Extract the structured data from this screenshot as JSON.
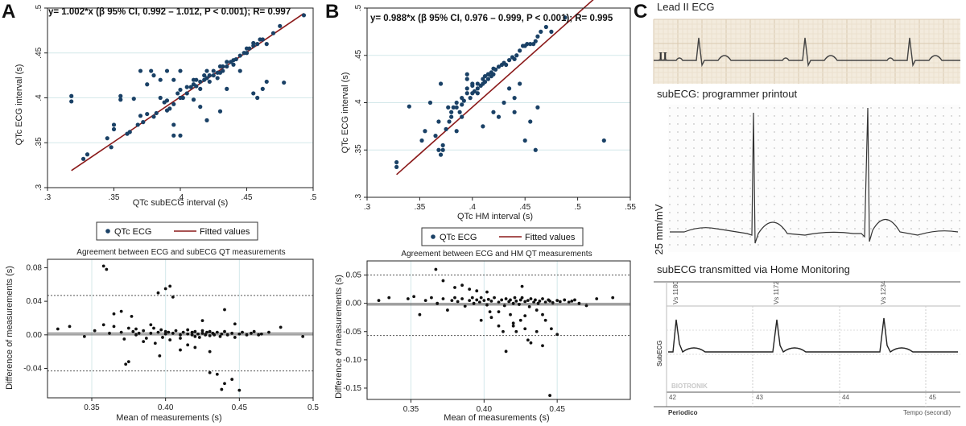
{
  "panels": {
    "A": {
      "letter": "A",
      "equation": "y= 1.002*x (β 95% CI, 0.992 – 1.012, P < 0.001); R= 0.997",
      "xlabel": "QTc subECG interval (s)",
      "ylabel": "QTc ECG interval (s)",
      "legend": {
        "points": "QTc ECG",
        "line": "Fitted values"
      },
      "ba_title": "Agreement between ECG and subECG QT measurements",
      "ba_xlabel": "Mean of measurements (s)",
      "ba_ylabel": "Difference of measurements (s)"
    },
    "B": {
      "letter": "B",
      "equation": "y= 0.988*x (β 95% CI, 0.976 – 0.999, P < 0.001); R= 0.995",
      "xlabel": "QTc HM interval (s)",
      "ylabel": "QTc ECG interval (s)",
      "legend": {
        "points": "QTc ECG",
        "line": "Fitted values"
      },
      "ba_title": "Agreement between ECG and HM QT measurements",
      "ba_xlabel": "Mean of measurements (s)",
      "ba_ylabel": "Difference of measurements (s)"
    },
    "C": {
      "letter": "C",
      "lead_title": "Lead II ECG",
      "lead_label": "II",
      "printout_title": "subECG: programmer printout",
      "scale_label": "25 mm/mV",
      "hm_title": "subECG transmitted via Home Monitoring",
      "beats": [
        "Vs 1180",
        "Vs 1172",
        "Vs 1234"
      ],
      "hm_side_label": "SubECG",
      "brand": "BIOTRONIK",
      "time_ticks": [
        "42",
        "43",
        "44",
        "45"
      ],
      "periodico": "Periodico",
      "tempo": "Tempo (secondi)"
    }
  },
  "chart_data": [
    {
      "id": "A-scatter",
      "type": "scatter",
      "title": "y= 1.002*x (β 95% CI, 0.992 – 1.012, P < 0.001); R= 0.997",
      "xlabel": "QTc subECG interval (s)",
      "ylabel": "QTc ECG interval (s)",
      "xlim": [
        0.3,
        0.5
      ],
      "ylim": [
        0.3,
        0.5
      ],
      "xticks": [
        ".3",
        ".35",
        ".4",
        ".45",
        ".5"
      ],
      "yticks": [
        ".3",
        ".35",
        ".4",
        ".45",
        ".5"
      ],
      "series": [
        {
          "name": "QTc ECG",
          "x": [
            0.318,
            0.318,
            0.327,
            0.33,
            0.348,
            0.35,
            0.35,
            0.355,
            0.36,
            0.362,
            0.365,
            0.368,
            0.37,
            0.372,
            0.375,
            0.378,
            0.38,
            0.38,
            0.382,
            0.385,
            0.385,
            0.388,
            0.39,
            0.39,
            0.392,
            0.395,
            0.395,
            0.398,
            0.4,
            0.4,
            0.402,
            0.405,
            0.405,
            0.408,
            0.41,
            0.41,
            0.412,
            0.412,
            0.415,
            0.415,
            0.418,
            0.418,
            0.42,
            0.42,
            0.422,
            0.422,
            0.425,
            0.425,
            0.428,
            0.428,
            0.43,
            0.43,
            0.432,
            0.432,
            0.435,
            0.435,
            0.438,
            0.44,
            0.44,
            0.442,
            0.445,
            0.448,
            0.45,
            0.45,
            0.452,
            0.455,
            0.455,
            0.458,
            0.46,
            0.462,
            0.465,
            0.47,
            0.475,
            0.478,
            0.493,
            0.345,
            0.355,
            0.37,
            0.375,
            0.39,
            0.395,
            0.4,
            0.415,
            0.42,
            0.43,
            0.455,
            0.458,
            0.462,
            0.465,
            0.4,
            0.395,
            0.41,
            0.435,
            0.445
          ],
          "y": [
            0.402,
            0.396,
            0.332,
            0.337,
            0.345,
            0.37,
            0.365,
            0.398,
            0.36,
            0.362,
            0.399,
            0.37,
            0.38,
            0.373,
            0.382,
            0.43,
            0.425,
            0.379,
            0.383,
            0.4,
            0.42,
            0.395,
            0.386,
            0.397,
            0.388,
            0.42,
            0.393,
            0.405,
            0.4,
            0.409,
            0.4,
            0.405,
            0.412,
            0.412,
            0.415,
            0.398,
            0.413,
            0.42,
            0.41,
            0.418,
            0.42,
            0.425,
            0.422,
            0.43,
            0.418,
            0.425,
            0.425,
            0.43,
            0.428,
            0.422,
            0.428,
            0.435,
            0.435,
            0.43,
            0.435,
            0.44,
            0.44,
            0.442,
            0.437,
            0.443,
            0.447,
            0.45,
            0.45,
            0.455,
            0.455,
            0.458,
            0.461,
            0.46,
            0.465,
            0.465,
            0.46,
            0.472,
            0.48,
            0.417,
            0.492,
            0.355,
            0.402,
            0.43,
            0.415,
            0.43,
            0.358,
            0.358,
            0.39,
            0.375,
            0.385,
            0.405,
            0.4,
            0.41,
            0.418,
            0.43,
            0.37,
            0.42,
            0.41,
            0.43
          ]
        }
      ],
      "fit": {
        "name": "Fitted values",
        "x": [
          0.318,
          0.493
        ],
        "y": [
          0.319,
          0.494
        ]
      }
    },
    {
      "id": "A-bland-altman",
      "type": "scatter",
      "title": "Agreement between ECG and subECG QT measurements",
      "xlabel": "Mean of measurements (s)",
      "ylabel": "Difference of measurements (s)",
      "xlim": [
        0.32,
        0.5
      ],
      "ylim": [
        -0.075,
        0.09
      ],
      "xticks": [
        "0.35",
        "0.40",
        "0.45",
        "0.5"
      ],
      "yticks": [
        "-0.04",
        "0.00",
        "0.04",
        "0.08"
      ],
      "ref_lines": {
        "mean": 0.002,
        "upper": 0.047,
        "lower": -0.043
      },
      "series": [
        {
          "name": "differences",
          "x": [
            0.327,
            0.335,
            0.345,
            0.352,
            0.358,
            0.362,
            0.365,
            0.37,
            0.372,
            0.375,
            0.378,
            0.38,
            0.38,
            0.382,
            0.385,
            0.387,
            0.39,
            0.392,
            0.393,
            0.395,
            0.397,
            0.398,
            0.4,
            0.4,
            0.402,
            0.403,
            0.405,
            0.407,
            0.41,
            0.41,
            0.412,
            0.415,
            0.415,
            0.418,
            0.418,
            0.42,
            0.42,
            0.422,
            0.423,
            0.425,
            0.425,
            0.427,
            0.428,
            0.43,
            0.43,
            0.432,
            0.433,
            0.435,
            0.437,
            0.438,
            0.44,
            0.442,
            0.445,
            0.447,
            0.45,
            0.452,
            0.455,
            0.458,
            0.46,
            0.463,
            0.465,
            0.47,
            0.478,
            0.493,
            0.36,
            0.358,
            0.37,
            0.377,
            0.395,
            0.4,
            0.403,
            0.43,
            0.435,
            0.44,
            0.438,
            0.445,
            0.45,
            0.44,
            0.447,
            0.405,
            0.41,
            0.396,
            0.415,
            0.42,
            0.385,
            0.39,
            0.375,
            0.373,
            0.365,
            0.43,
            0.425
          ],
          "y": [
            0.007,
            0.01,
            -0.002,
            0.005,
            0.012,
            0.002,
            0.01,
            0.003,
            -0.005,
            0.008,
            0.004,
            0.0,
            0.007,
            0.002,
            0.005,
            -0.004,
            0.002,
            0.008,
            -0.01,
            0.003,
            0.006,
            -0.003,
            0.004,
            0.001,
            0.003,
            -0.006,
            0.002,
            0.005,
            0.0,
            -0.004,
            0.003,
            0.001,
            0.006,
            0.0,
            0.003,
            -0.002,
            0.004,
            0.001,
            -0.003,
            0.002,
            0.005,
            0.0,
            0.003,
            -0.001,
            0.004,
            0.002,
            0.0,
            0.003,
            -0.002,
            0.001,
            0.004,
            0.0,
            0.002,
            -0.003,
            0.001,
            0.003,
            0.0,
            0.002,
            0.004,
            0.0,
            0.001,
            0.003,
            0.009,
            -0.002,
            0.078,
            0.082,
            0.028,
            0.022,
            0.05,
            0.055,
            0.058,
            -0.045,
            -0.047,
            -0.058,
            -0.065,
            -0.053,
            -0.066,
            0.03,
            0.013,
            0.045,
            -0.018,
            -0.025,
            -0.012,
            -0.015,
            -0.008,
            0.012,
            -0.032,
            -0.035,
            0.025,
            -0.02,
            0.017
          ]
        }
      ]
    },
    {
      "id": "B-scatter",
      "type": "scatter",
      "title": "y= 0.988*x (β 95% CI, 0.976 – 0.999, P < 0.001); R= 0.995",
      "xlabel": "QTc HM interval (s)",
      "ylabel": "QTc ECG interval (s)",
      "xlim": [
        0.3,
        0.55
      ],
      "ylim": [
        0.3,
        0.5
      ],
      "xticks": [
        ".3",
        ".35",
        ".4",
        ".45",
        ".5",
        ".55"
      ],
      "yticks": [
        ".3",
        ".35",
        ".4",
        ".45",
        ".5"
      ],
      "series": [
        {
          "name": "QTc ECG",
          "x": [
            0.328,
            0.328,
            0.34,
            0.352,
            0.355,
            0.36,
            0.365,
            0.368,
            0.37,
            0.372,
            0.375,
            0.378,
            0.38,
            0.38,
            0.382,
            0.385,
            0.385,
            0.388,
            0.39,
            0.39,
            0.392,
            0.395,
            0.395,
            0.398,
            0.4,
            0.4,
            0.402,
            0.405,
            0.405,
            0.408,
            0.41,
            0.41,
            0.412,
            0.412,
            0.415,
            0.415,
            0.418,
            0.418,
            0.42,
            0.42,
            0.422,
            0.425,
            0.428,
            0.43,
            0.432,
            0.435,
            0.438,
            0.44,
            0.442,
            0.445,
            0.448,
            0.45,
            0.452,
            0.455,
            0.458,
            0.46,
            0.462,
            0.465,
            0.47,
            0.475,
            0.488,
            0.525,
            0.368,
            0.372,
            0.377,
            0.39,
            0.395,
            0.4,
            0.41,
            0.42,
            0.425,
            0.435,
            0.44,
            0.445,
            0.45,
            0.455,
            0.46,
            0.462,
            0.415,
            0.43,
            0.44,
            0.385,
            0.395,
            0.405,
            0.37
          ],
          "y": [
            0.337,
            0.332,
            0.396,
            0.36,
            0.37,
            0.4,
            0.365,
            0.38,
            0.345,
            0.35,
            0.372,
            0.38,
            0.385,
            0.39,
            0.395,
            0.395,
            0.4,
            0.39,
            0.398,
            0.405,
            0.402,
            0.41,
            0.415,
            0.405,
            0.41,
            0.418,
            0.412,
            0.415,
            0.42,
            0.418,
            0.42,
            0.425,
            0.422,
            0.428,
            0.425,
            0.43,
            0.428,
            0.432,
            0.43,
            0.436,
            0.435,
            0.438,
            0.44,
            0.442,
            0.44,
            0.445,
            0.448,
            0.446,
            0.45,
            0.455,
            0.46,
            0.46,
            0.462,
            0.462,
            0.462,
            0.465,
            0.47,
            0.475,
            0.48,
            0.475,
            0.49,
            0.36,
            0.35,
            0.355,
            0.395,
            0.385,
            0.43,
            0.42,
            0.375,
            0.39,
            0.385,
            0.415,
            0.405,
            0.42,
            0.36,
            0.38,
            0.35,
            0.395,
            0.43,
            0.4,
            0.39,
            0.37,
            0.425,
            0.41,
            0.42
          ]
        }
      ],
      "fit": {
        "name": "Fitted values",
        "x": [
          0.328,
          0.523
        ],
        "y": [
          0.324,
          0.517
        ]
      }
    },
    {
      "id": "B-bland-altman",
      "type": "scatter",
      "title": "Agreement between ECG and HM QT measurements",
      "xlabel": "Mean of measurements (s)",
      "ylabel": "Difference of measurements (s)",
      "xlim": [
        0.32,
        0.5
      ],
      "ylim": [
        -0.17,
        0.075
      ],
      "xticks": [
        "0.35",
        "0.40",
        "0.45"
      ],
      "yticks": [
        "-0.15",
        "-0.10",
        "-0.05",
        "0.00",
        "0.05"
      ],
      "ref_lines": {
        "mean": -0.003,
        "upper": 0.05,
        "lower": -0.057
      },
      "series": [
        {
          "name": "differences",
          "x": [
            0.328,
            0.335,
            0.348,
            0.352,
            0.356,
            0.36,
            0.364,
            0.368,
            0.372,
            0.375,
            0.378,
            0.38,
            0.382,
            0.385,
            0.387,
            0.39,
            0.392,
            0.393,
            0.395,
            0.397,
            0.398,
            0.4,
            0.402,
            0.403,
            0.405,
            0.407,
            0.41,
            0.412,
            0.414,
            0.415,
            0.417,
            0.418,
            0.42,
            0.421,
            0.422,
            0.424,
            0.425,
            0.426,
            0.428,
            0.43,
            0.431,
            0.432,
            0.434,
            0.435,
            0.437,
            0.438,
            0.44,
            0.442,
            0.444,
            0.445,
            0.447,
            0.45,
            0.452,
            0.455,
            0.458,
            0.46,
            0.462,
            0.465,
            0.47,
            0.477,
            0.488,
            0.367,
            0.372,
            0.38,
            0.385,
            0.39,
            0.395,
            0.398,
            0.405,
            0.41,
            0.413,
            0.418,
            0.42,
            0.422,
            0.425,
            0.428,
            0.43,
            0.432,
            0.436,
            0.44,
            0.442,
            0.446,
            0.45,
            0.445,
            0.41,
            0.415,
            0.42,
            0.428,
            0.436,
            0.44,
            0.402,
            0.404,
            0.426
          ],
          "y": [
            0.005,
            0.01,
            0.008,
            0.012,
            -0.02,
            0.005,
            0.01,
            0.0,
            0.008,
            -0.012,
            0.005,
            0.01,
            0.003,
            0.008,
            -0.005,
            0.005,
            0.01,
            0.0,
            0.006,
            0.002,
            0.01,
            0.005,
            -0.003,
            0.007,
            0.004,
            0.01,
            0.002,
            0.006,
            -0.004,
            0.008,
            0.003,
            0.006,
            0.0,
            0.01,
            0.004,
            -0.002,
            0.006,
            0.01,
            0.003,
            0.005,
            -0.006,
            0.008,
            0.002,
            0.006,
            0.0,
            0.004,
            0.008,
            0.002,
            0.006,
            0.004,
            0.001,
            0.005,
            0.003,
            0.006,
            0.002,
            0.004,
            0.006,
            0.0,
            -0.004,
            0.008,
            0.01,
            0.06,
            0.04,
            0.028,
            0.032,
            0.025,
            0.022,
            -0.03,
            -0.025,
            -0.04,
            -0.05,
            -0.02,
            -0.035,
            -0.05,
            -0.03,
            -0.045,
            -0.065,
            -0.07,
            -0.05,
            -0.02,
            -0.03,
            -0.045,
            -0.055,
            -0.163,
            -0.015,
            -0.085,
            -0.04,
            -0.022,
            -0.012,
            -0.075,
            0.02,
            -0.015,
            0.03
          ]
        }
      ]
    }
  ]
}
